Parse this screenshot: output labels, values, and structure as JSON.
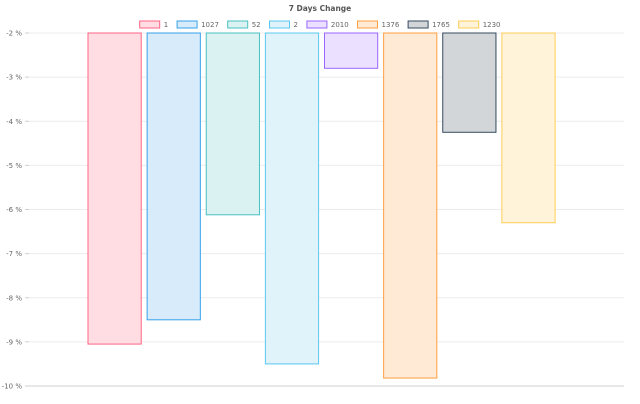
{
  "chart_data": {
    "type": "bar",
    "title": "7 Days Change",
    "xlabel": "",
    "ylabel": "",
    "y_suffix": " %",
    "ylim": [
      -10,
      -2
    ],
    "y_ticks": [
      -2,
      -3,
      -4,
      -5,
      -6,
      -7,
      -8,
      -9,
      -10
    ],
    "grid": true,
    "legend_position": "top",
    "series": [
      {
        "name": "1",
        "value": -9.05,
        "fill": "#ffdde3",
        "stroke": "#ff6384"
      },
      {
        "name": "1027",
        "value": -8.5,
        "fill": "#d7ebfa",
        "stroke": "#36a2eb"
      },
      {
        "name": "52",
        "value": -6.12,
        "fill": "#dbf2f2",
        "stroke": "#4bc0c0"
      },
      {
        "name": "2",
        "value": -9.5,
        "fill": "#e0f2fa",
        "stroke": "#5ac8f0"
      },
      {
        "name": "2010",
        "value": -2.8,
        "fill": "#ebe0ff",
        "stroke": "#9966ff"
      },
      {
        "name": "1376",
        "value": -9.82,
        "fill": "#ffead6",
        "stroke": "#ff9f40"
      },
      {
        "name": "1765",
        "value": -4.25,
        "fill": "#d3d6d9",
        "stroke": "#34495e"
      },
      {
        "name": "1230",
        "value": -6.3,
        "fill": "#fff3d9",
        "stroke": "#ffcd56"
      }
    ]
  }
}
